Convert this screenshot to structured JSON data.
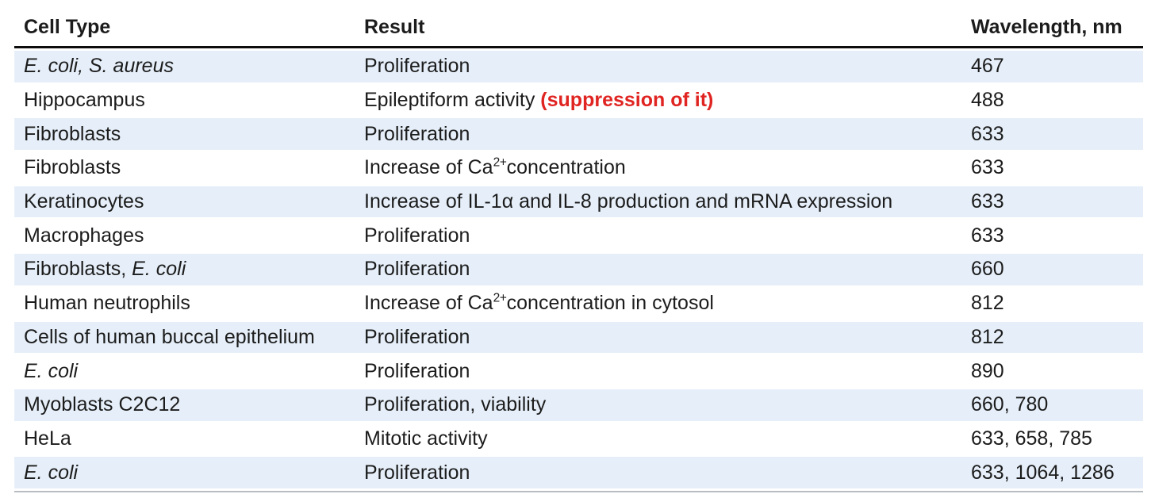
{
  "colors": {
    "stripe": "#e6eff9",
    "text": "#1c1c1c",
    "red_annotation": "#e02421",
    "header_rule": "#0d0d0d",
    "bottom_rule": "#b8bdc1"
  },
  "table": {
    "columns": [
      {
        "key": "cell_type",
        "label": "Cell Type"
      },
      {
        "key": "result",
        "label": "Result"
      },
      {
        "key": "wavelength",
        "label": "Wavelength, nm"
      }
    ],
    "rows": [
      {
        "cell_type": [
          {
            "t": "E. coli, S. aureus",
            "s": "i"
          }
        ],
        "result": [
          {
            "t": "Proliferation",
            "s": "n"
          }
        ],
        "wavelength": "467"
      },
      {
        "cell_type": [
          {
            "t": "Hippocampus",
            "s": "n"
          }
        ],
        "result": [
          {
            "t": "Epileptiform activity ",
            "s": "n"
          },
          {
            "t": "(suppression of it)",
            "s": "red"
          }
        ],
        "wavelength": "488"
      },
      {
        "cell_type": [
          {
            "t": "Fibroblasts",
            "s": "n"
          }
        ],
        "result": [
          {
            "t": "Proliferation",
            "s": "n"
          }
        ],
        "wavelength": "633"
      },
      {
        "cell_type": [
          {
            "t": "Fibroblasts",
            "s": "n"
          }
        ],
        "result": [
          {
            "t": "Increase of Ca",
            "s": "n"
          },
          {
            "t": "2+",
            "s": "sup"
          },
          {
            "t": "concentration",
            "s": "n"
          }
        ],
        "wavelength": "633"
      },
      {
        "cell_type": [
          {
            "t": "Keratinocytes",
            "s": "n"
          }
        ],
        "result": [
          {
            "t": "Increase of IL-1α and IL-8 production and mRNA expression",
            "s": "n"
          }
        ],
        "wavelength": "633"
      },
      {
        "cell_type": [
          {
            "t": "Macrophages",
            "s": "n"
          }
        ],
        "result": [
          {
            "t": "Proliferation",
            "s": "n"
          }
        ],
        "wavelength": "633"
      },
      {
        "cell_type": [
          {
            "t": "Fibroblasts, ",
            "s": "n"
          },
          {
            "t": "E. coli",
            "s": "i"
          }
        ],
        "result": [
          {
            "t": "Proliferation",
            "s": "n"
          }
        ],
        "wavelength": "660"
      },
      {
        "cell_type": [
          {
            "t": "Human neutrophils",
            "s": "n"
          }
        ],
        "result": [
          {
            "t": "Increase of Ca",
            "s": "n"
          },
          {
            "t": "2+",
            "s": "sup"
          },
          {
            "t": "concentration in cytosol",
            "s": "n"
          }
        ],
        "wavelength": "812"
      },
      {
        "cell_type": [
          {
            "t": "Cells of human buccal epithelium",
            "s": "n"
          }
        ],
        "result": [
          {
            "t": "Proliferation",
            "s": "n"
          }
        ],
        "wavelength": "812"
      },
      {
        "cell_type": [
          {
            "t": "E. coli",
            "s": "i"
          }
        ],
        "result": [
          {
            "t": "Proliferation",
            "s": "n"
          }
        ],
        "wavelength": "890"
      },
      {
        "cell_type": [
          {
            "t": "Myoblasts C2C12",
            "s": "n"
          }
        ],
        "result": [
          {
            "t": "Proliferation, viability",
            "s": "n"
          }
        ],
        "wavelength": "660, 780"
      },
      {
        "cell_type": [
          {
            "t": "HeLa",
            "s": "n"
          }
        ],
        "result": [
          {
            "t": "Mitotic activity",
            "s": "n"
          }
        ],
        "wavelength": "633, 658, 785"
      },
      {
        "cell_type": [
          {
            "t": "E. coli",
            "s": "i"
          }
        ],
        "result": [
          {
            "t": "Proliferation",
            "s": "n"
          }
        ],
        "wavelength": "633, 1064, 1286"
      }
    ]
  }
}
